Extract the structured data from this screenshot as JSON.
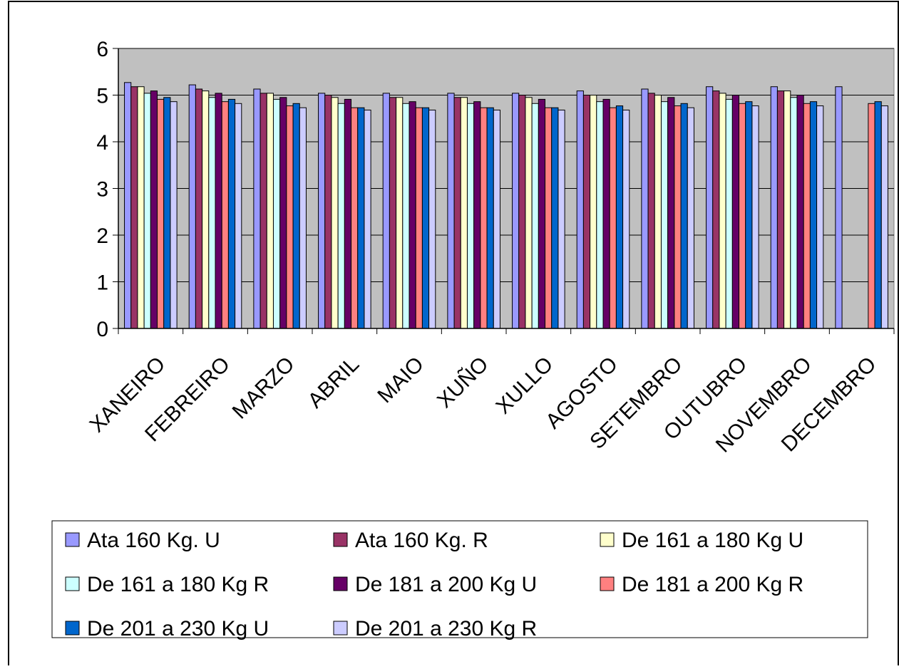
{
  "chart_data": {
    "type": "bar",
    "title": "",
    "xlabel": "",
    "ylabel": "",
    "ylim": [
      0,
      6
    ],
    "yticks": [
      "0",
      "1",
      "2",
      "3",
      "4",
      "5",
      "6"
    ],
    "grid": true,
    "legend_position": "bottom",
    "categories": [
      "XANEIRO",
      "FEBREIRO",
      "MARZO",
      "ABRIL",
      "MAIO",
      "XUÑO",
      "XULLO",
      "AGOSTO",
      "SETEMBRO",
      "OUTUBRO",
      "NOVEMBRO",
      "DECEMBRO"
    ],
    "series": [
      {
        "name": "Ata 160 Kg. U",
        "color": "#9999FF",
        "values": [
          5.27,
          5.22,
          5.13,
          5.04,
          5.04,
          5.04,
          5.04,
          5.09,
          5.13,
          5.18,
          5.18,
          5.18
        ]
      },
      {
        "name": "Ata 160 Kg. R",
        "color": "#993366",
        "values": [
          5.18,
          5.13,
          5.04,
          5.0,
          4.95,
          4.95,
          5.0,
          5.0,
          5.04,
          5.09,
          5.09,
          null
        ]
      },
      {
        "name": "De 161 a 180 Kg U",
        "color": "#FFFFCC",
        "values": [
          5.18,
          5.09,
          5.04,
          4.95,
          4.95,
          4.95,
          4.95,
          5.0,
          5.0,
          5.04,
          5.09,
          null
        ]
      },
      {
        "name": "De 161 a 180 Kg R",
        "color": "#CCFFFF",
        "values": [
          5.04,
          4.95,
          4.91,
          4.82,
          4.82,
          4.82,
          4.82,
          4.86,
          4.86,
          4.91,
          4.95,
          null
        ]
      },
      {
        "name": "De 181 a 200 Kg U",
        "color": "#660066",
        "values": [
          5.09,
          5.04,
          4.95,
          4.91,
          4.86,
          4.86,
          4.91,
          4.91,
          4.95,
          5.0,
          5.0,
          null
        ]
      },
      {
        "name": "De 181 a 200 Kg R",
        "color": "#FF8080",
        "values": [
          4.91,
          4.86,
          4.77,
          4.73,
          4.73,
          4.73,
          4.73,
          4.73,
          4.77,
          4.82,
          4.82,
          4.82
        ]
      },
      {
        "name": "De 201 a 230 Kg U",
        "color": "#0066CC",
        "values": [
          4.95,
          4.91,
          4.82,
          4.73,
          4.73,
          4.73,
          4.73,
          4.77,
          4.82,
          4.86,
          4.86,
          4.86
        ]
      },
      {
        "name": "De 201 a 230 Kg R",
        "color": "#CCCCFF",
        "values": [
          4.86,
          4.82,
          4.73,
          4.68,
          4.68,
          4.68,
          4.68,
          4.68,
          4.73,
          4.77,
          4.77,
          4.77
        ]
      }
    ]
  },
  "colors": {
    "plot_background": "#C0C0C0",
    "page_background": "#FFFFFF",
    "axis": "#000000"
  }
}
